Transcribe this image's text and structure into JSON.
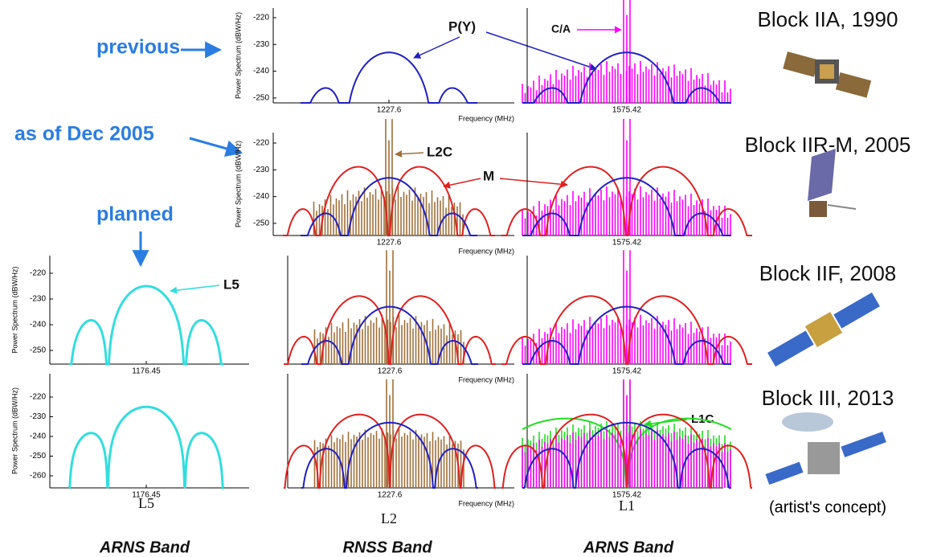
{
  "left_labels": {
    "previous": "previous",
    "dec_2005": "as of Dec 2005",
    "planned": "planned"
  },
  "annotations": {
    "py": "P(Y)",
    "ca": "C/A",
    "l2c": "L2C",
    "m": "M",
    "l5": "L5",
    "l1c": "L1C"
  },
  "panels": [
    {
      "y_label": "Power Spectrum (dBW/Hz)",
      "yticks": [
        -220,
        -230,
        -240,
        -250
      ],
      "center": "1227.6",
      "x_label": "Frequency (MHz)"
    },
    {
      "center": "1575.42"
    },
    {
      "y_label": "Power Spectrum (dBW/Hz)",
      "yticks": [
        -220,
        -230,
        -240,
        -250
      ],
      "center": "1227.6",
      "x_label": "Frequency (MHz)"
    },
    {
      "center": "1575.42"
    },
    {
      "y_label": "Power Spectrum (dBW/Hz)",
      "yticks": [
        -220,
        -230,
        -240,
        -250
      ],
      "center": "1176.45"
    },
    {
      "center": "1227.6",
      "x_label": "Frequency (MHz)"
    },
    {
      "center": "1575.42"
    },
    {
      "y_label": "Power Spectrum (dBW/Hz)",
      "yticks": [
        -220,
        -230,
        -240,
        -250,
        -260
      ],
      "center": "1176.45"
    },
    {
      "center": "1227.6",
      "x_label": "Frequency (MHz)"
    },
    {
      "center": "1575.42"
    }
  ],
  "blocks": [
    "Block IIA, 1990",
    "Block IIR-M, 2005",
    "Block IIF, 2008",
    "Block III, 2013"
  ],
  "concept_note": "(artist's concept)",
  "signals": [
    "L5",
    "L2",
    "L1"
  ],
  "bands": [
    "ARNS Band",
    "RNSS Band",
    "ARNS Band"
  ]
}
